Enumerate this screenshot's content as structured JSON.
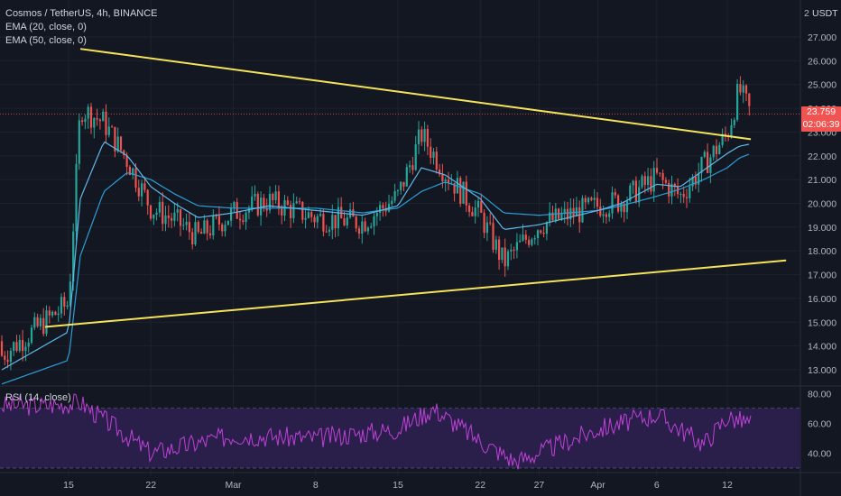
{
  "header": {
    "symbol_line": "Cosmos / TetherUS, 4h, BINANCE",
    "ema1": "EMA (20, close, 0)",
    "ema2": "EMA (50, close, 0)",
    "scale_mode": "2",
    "currency": "USDT"
  },
  "rsi_panel": {
    "label": "RSI (14, close)"
  },
  "last_price": {
    "value": "23.759",
    "countdown": "02:06:39"
  },
  "colors": {
    "background": "#131722",
    "grid": "#1e222d",
    "up_candle": "#26a69a",
    "down_candle": "#ef5350",
    "ema20": "#5fb8e8",
    "ema50": "#2a9fd6",
    "trendline": "#f5e35c",
    "rsi_line": "#c040d8",
    "rsi_band": "#2a1f4a",
    "price_line": "#ef5350"
  },
  "chart_data": [
    {
      "type": "candlestick",
      "title": "Cosmos / TetherUS, 4h, BINANCE",
      "x_tick_labels": [
        "15",
        "22",
        "Mar",
        "8",
        "15",
        "22",
        "27",
        "Apr",
        "6",
        "12"
      ],
      "y_tick_labels": [
        "13.000",
        "14.000",
        "15.000",
        "16.000",
        "17.000",
        "18.000",
        "19.000",
        "20.000",
        "21.000",
        "22.000",
        "23.000",
        "24.000",
        "25.000",
        "26.000",
        "27.000"
      ],
      "ylim": [
        12.3,
        28.0
      ],
      "x": [
        "Feb 15",
        "Feb 16",
        "Feb 18",
        "Feb 20",
        "Feb 22",
        "Feb 24",
        "Feb 26",
        "Mar 1",
        "Mar 4",
        "Mar 8",
        "Mar 12",
        "Mar 15",
        "Mar 17",
        "Mar 19",
        "Mar 22",
        "Mar 24",
        "Mar 27",
        "Apr 1",
        "Apr 3",
        "Apr 6",
        "Apr 8",
        "Apr 10",
        "Apr 12",
        "Apr 13",
        "Apr 14"
      ],
      "close": [
        15.8,
        24.0,
        23.4,
        21.8,
        19.8,
        19.3,
        18.6,
        19.6,
        20.1,
        19.4,
        19.2,
        20.3,
        22.9,
        21.3,
        19.5,
        17.5,
        19.1,
        19.9,
        20.1,
        21.1,
        20.3,
        21.6,
        22.9,
        24.8,
        23.759
      ],
      "ema20": [
        14.6,
        20.2,
        22.6,
        22.0,
        20.7,
        20.0,
        19.4,
        19.6,
        19.9,
        19.7,
        19.5,
        19.9,
        21.5,
        21.2,
        20.2,
        18.9,
        19.1,
        19.7,
        20.0,
        20.8,
        20.7,
        21.4,
        22.1,
        22.4,
        22.5
      ],
      "ema50": [
        13.4,
        17.8,
        20.5,
        21.3,
        21.0,
        20.4,
        19.9,
        19.8,
        19.8,
        19.8,
        19.6,
        19.8,
        20.5,
        20.9,
        20.4,
        19.6,
        19.5,
        19.7,
        19.9,
        20.3,
        20.6,
        21.0,
        21.5,
        21.9,
        22.1
      ],
      "trendlines": [
        {
          "points": [
            [
              "Feb 16",
              26.5
            ],
            [
              "Apr 14",
              22.7
            ]
          ]
        },
        {
          "points": [
            [
              "Feb 13",
              14.8
            ],
            [
              "Apr 17",
              17.6
            ]
          ]
        }
      ],
      "last_price": 23.759
    },
    {
      "type": "line",
      "title": "RSI (14, close)",
      "y_tick_labels": [
        "40.00",
        "60.00",
        "80.00"
      ],
      "ylim": [
        28,
        84
      ],
      "bands": [
        30,
        70
      ],
      "x": [
        "Feb 13",
        "Feb 16",
        "Feb 22",
        "Mar 1",
        "Mar 8",
        "Mar 15",
        "Mar 18",
        "Mar 22",
        "Mar 25",
        "Apr 1",
        "Apr 6",
        "Apr 10",
        "Apr 12",
        "Apr 14"
      ],
      "values": [
        72,
        74,
        40,
        52,
        50,
        56,
        70,
        48,
        34,
        56,
        66,
        46,
        64,
        60
      ]
    }
  ]
}
